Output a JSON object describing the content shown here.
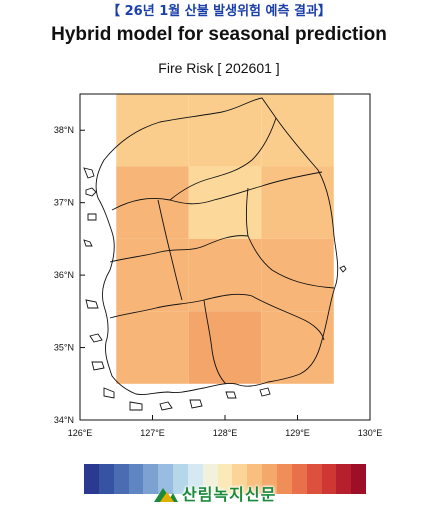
{
  "header": {
    "text": "【 26년 1월 산불 발생위험 예측 결과】"
  },
  "title": "Hybrid model for seasonal prediction",
  "subtitle": "Fire Risk [ 202601 ]",
  "axes": {
    "x_ticks": [
      "126°E",
      "127°E",
      "128°E",
      "129°E",
      "130°E"
    ],
    "y_ticks": [
      "38°N",
      "37°N",
      "36°N",
      "35°N",
      "34°N"
    ],
    "lon_range": [
      126,
      130
    ],
    "lat_range": [
      34,
      38.5
    ]
  },
  "grid_cells": [
    {
      "lon": 126.5,
      "lat": 38.0,
      "value": 3
    },
    {
      "lon": 127.5,
      "lat": 38.0,
      "value": 3
    },
    {
      "lon": 128.5,
      "lat": 38.0,
      "value": 3
    },
    {
      "lon": 126.5,
      "lat": 37.0,
      "value": 5
    },
    {
      "lon": 127.5,
      "lat": 37.0,
      "value": 2
    },
    {
      "lon": 128.5,
      "lat": 37.0,
      "value": 4
    },
    {
      "lon": 126.5,
      "lat": 36.0,
      "value": 5
    },
    {
      "lon": 127.5,
      "lat": 36.0,
      "value": 5
    },
    {
      "lon": 128.5,
      "lat": 36.0,
      "value": 5
    },
    {
      "lon": 126.5,
      "lat": 35.0,
      "value": 5
    },
    {
      "lon": 127.5,
      "lat": 35.0,
      "value": 6
    },
    {
      "lon": 128.5,
      "lat": 35.0,
      "value": 5
    }
  ],
  "colorbar": {
    "colors": [
      "#2b3990",
      "#3652a3",
      "#4a6cb3",
      "#5f85c2",
      "#7ba2d1",
      "#98bde0",
      "#b6d6ea",
      "#d4e9f2",
      "#f2f2dc",
      "#fbe9b7",
      "#fad597",
      "#f8bf7f",
      "#f5a86b",
      "#f08e58",
      "#e8704a",
      "#dc513e",
      "#cf3735",
      "#b51f2e",
      "#9e0e27"
    ]
  },
  "logo": {
    "text": "산림녹지신문"
  },
  "colors": {
    "accent": "#1a3fa8",
    "land_outline": "#111111"
  }
}
